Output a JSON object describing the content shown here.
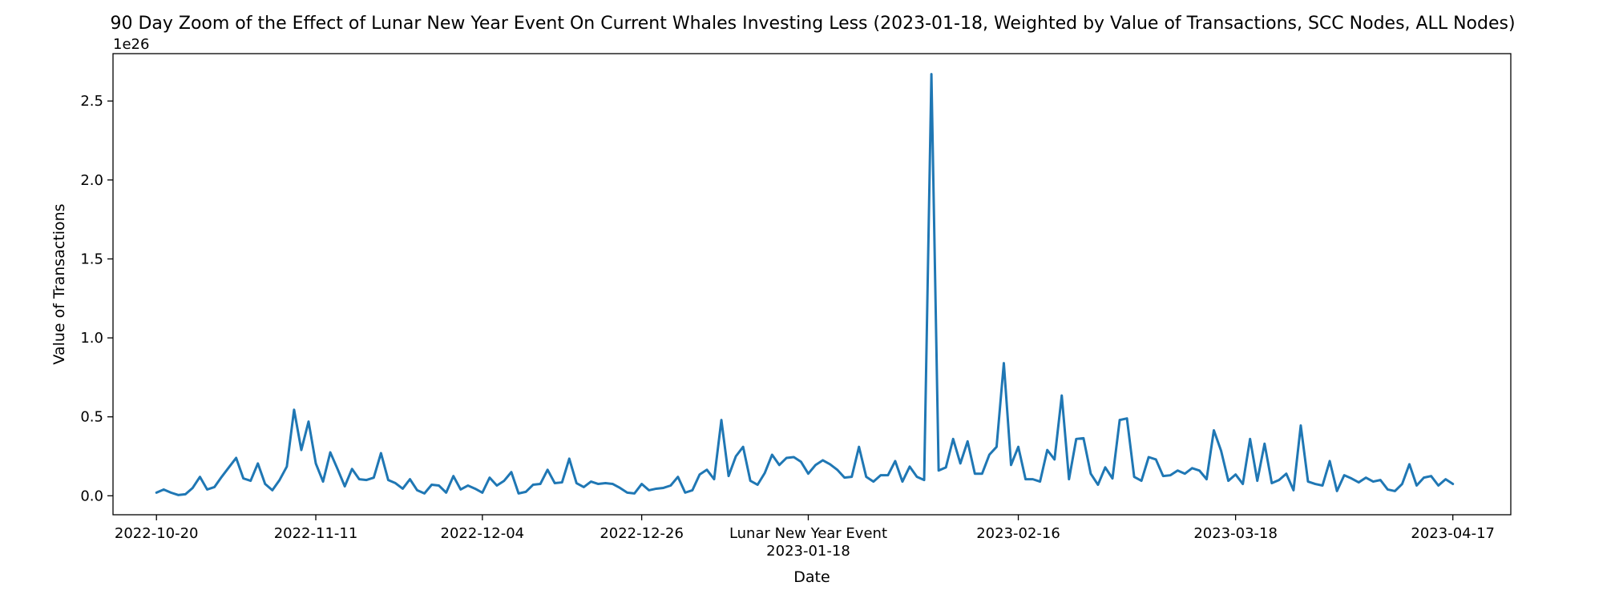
{
  "chart_data": {
    "type": "line",
    "title": "90 Day Zoom of the Effect of Lunar New Year Event On Current Whales Investing Less (2023-01-18, Weighted by Value of Transactions, SCC Nodes, ALL Nodes)",
    "xlabel": "Date",
    "ylabel": "Value of Transactions",
    "y_offset_label": "1e26",
    "y_unit_multiplier": 1e+26,
    "ylim": [
      -0.12,
      2.8
    ],
    "xlim": [
      "2022-10-14",
      "2023-04-25"
    ],
    "grid": false,
    "x_ticks": [
      {
        "date": "2022-10-20",
        "label": "2022-10-20"
      },
      {
        "date": "2022-11-11",
        "label": "2022-11-11"
      },
      {
        "date": "2022-12-04",
        "label": "2022-12-04"
      },
      {
        "date": "2022-12-26",
        "label": "2022-12-26"
      },
      {
        "date": "2023-01-18",
        "label": "Lunar New Year Event",
        "label2": "2023-01-18"
      },
      {
        "date": "2023-02-16",
        "label": "2023-02-16"
      },
      {
        "date": "2023-03-18",
        "label": "2023-03-18"
      },
      {
        "date": "2023-04-17",
        "label": "2023-04-17"
      }
    ],
    "y_ticks": [
      {
        "value": 0.0,
        "label": "0.0"
      },
      {
        "value": 0.5,
        "label": "0.5"
      },
      {
        "value": 1.0,
        "label": "1.0"
      },
      {
        "value": 1.5,
        "label": "1.5"
      },
      {
        "value": 2.0,
        "label": "2.0"
      },
      {
        "value": 2.5,
        "label": "2.5"
      }
    ],
    "series": [
      {
        "color": "#1f77b4",
        "start_date": "2022-10-20",
        "step_days": 1,
        "values": [
          0.02,
          0.04,
          0.02,
          0.005,
          0.01,
          0.05,
          0.12,
          0.04,
          0.055,
          0.12,
          0.18,
          0.24,
          0.11,
          0.095,
          0.205,
          0.075,
          0.035,
          0.1,
          0.185,
          0.545,
          0.29,
          0.47,
          0.205,
          0.09,
          0.275,
          0.17,
          0.06,
          0.17,
          0.105,
          0.1,
          0.115,
          0.27,
          0.1,
          0.08,
          0.045,
          0.105,
          0.035,
          0.015,
          0.07,
          0.065,
          0.02,
          0.125,
          0.04,
          0.065,
          0.045,
          0.02,
          0.115,
          0.065,
          0.095,
          0.15,
          0.015,
          0.025,
          0.07,
          0.075,
          0.165,
          0.08,
          0.085,
          0.235,
          0.08,
          0.055,
          0.09,
          0.075,
          0.08,
          0.075,
          0.05,
          0.02,
          0.015,
          0.075,
          0.035,
          0.045,
          0.05,
          0.065,
          0.12,
          0.02,
          0.035,
          0.135,
          0.165,
          0.105,
          0.48,
          0.125,
          0.25,
          0.31,
          0.095,
          0.07,
          0.145,
          0.26,
          0.195,
          0.24,
          0.245,
          0.215,
          0.14,
          0.195,
          0.225,
          0.2,
          0.165,
          0.115,
          0.12,
          0.31,
          0.12,
          0.09,
          0.13,
          0.13,
          0.22,
          0.09,
          0.185,
          0.12,
          0.1,
          2.67,
          0.16,
          0.18,
          0.36,
          0.205,
          0.345,
          0.14,
          0.14,
          0.26,
          0.31,
          0.84,
          0.195,
          0.31,
          0.105,
          0.105,
          0.09,
          0.29,
          0.23,
          0.635,
          0.105,
          0.36,
          0.365,
          0.14,
          0.07,
          0.18,
          0.11,
          0.48,
          0.49,
          0.12,
          0.095,
          0.245,
          0.23,
          0.125,
          0.13,
          0.16,
          0.14,
          0.175,
          0.16,
          0.105,
          0.415,
          0.285,
          0.095,
          0.135,
          0.075,
          0.36,
          0.095,
          0.33,
          0.08,
          0.1,
          0.14,
          0.035,
          0.445,
          0.09,
          0.075,
          0.065,
          0.22,
          0.03,
          0.13,
          0.11,
          0.085,
          0.115,
          0.09,
          0.1,
          0.04,
          0.03,
          0.075,
          0.2,
          0.065,
          0.115,
          0.125,
          0.065,
          0.105,
          0.075
        ]
      }
    ]
  }
}
